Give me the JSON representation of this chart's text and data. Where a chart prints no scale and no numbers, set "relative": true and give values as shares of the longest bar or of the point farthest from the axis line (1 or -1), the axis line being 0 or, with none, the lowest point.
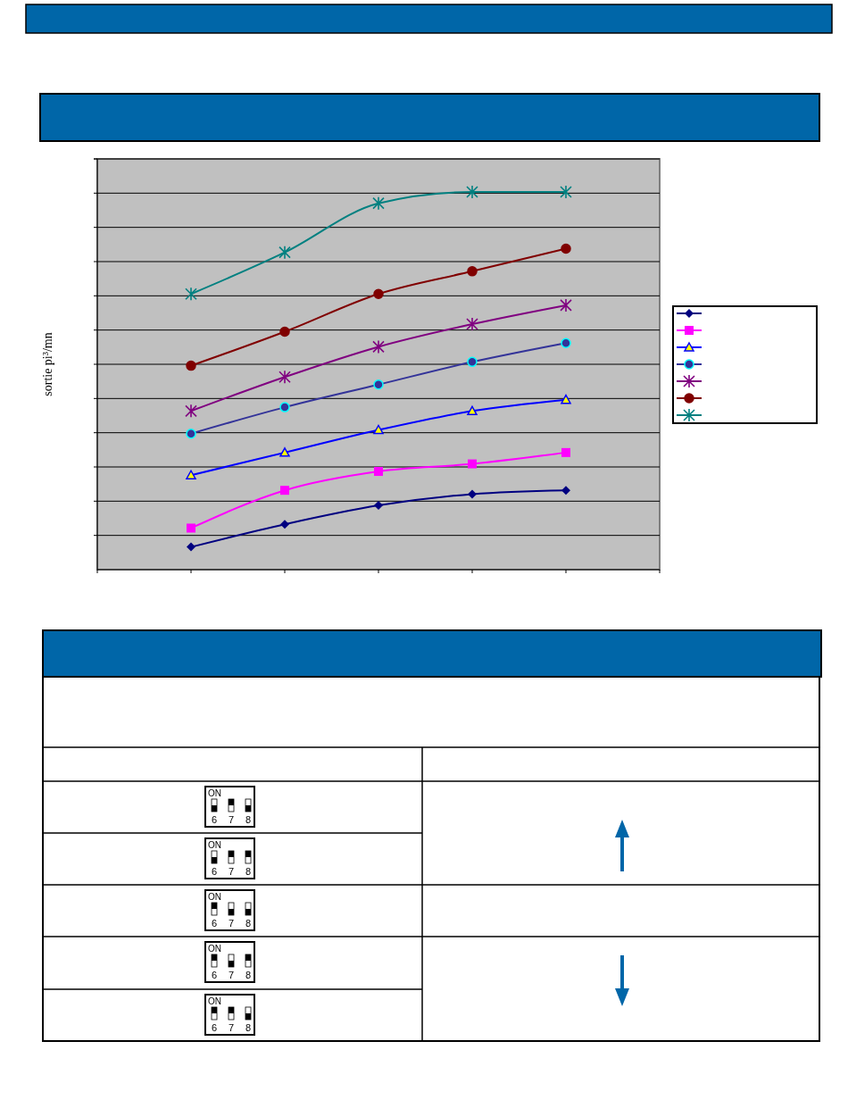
{
  "chart_data": [
    {
      "type": "line",
      "ylabel": "sortie pi³/mn",
      "relative": true,
      "grid": "y",
      "line_style": "solid",
      "categories": [
        null,
        null,
        null,
        null,
        null
      ],
      "series": [
        {
          "color": "#000080",
          "marker": "diamond",
          "values": [
            0.06,
            0.12,
            0.17,
            0.2,
            0.21
          ]
        },
        {
          "color": "#ff00ff",
          "marker": "square",
          "values": [
            0.11,
            0.21,
            0.26,
            0.28,
            0.31
          ]
        },
        {
          "color": "#0000ff",
          "marker": "triangle",
          "values": [
            0.25,
            0.31,
            0.37,
            0.42,
            0.45
          ]
        },
        {
          "color": "#333399",
          "marker": "circle",
          "values": [
            0.36,
            0.43,
            0.49,
            0.55,
            0.6
          ]
        },
        {
          "color": "#800080",
          "marker": "cross",
          "values": [
            0.42,
            0.51,
            0.59,
            0.65,
            0.7
          ]
        },
        {
          "color": "#800000",
          "marker": "circle",
          "values": [
            0.54,
            0.63,
            0.73,
            0.79,
            0.85
          ]
        },
        {
          "color": "#008080",
          "marker": "cross",
          "values": [
            0.73,
            0.84,
            0.97,
            1,
            1
          ]
        }
      ]
    },
    {
      "type": "other",
      "annotations": [
        "ON",
        "6",
        "7",
        "8"
      ]
    }
  ]
}
